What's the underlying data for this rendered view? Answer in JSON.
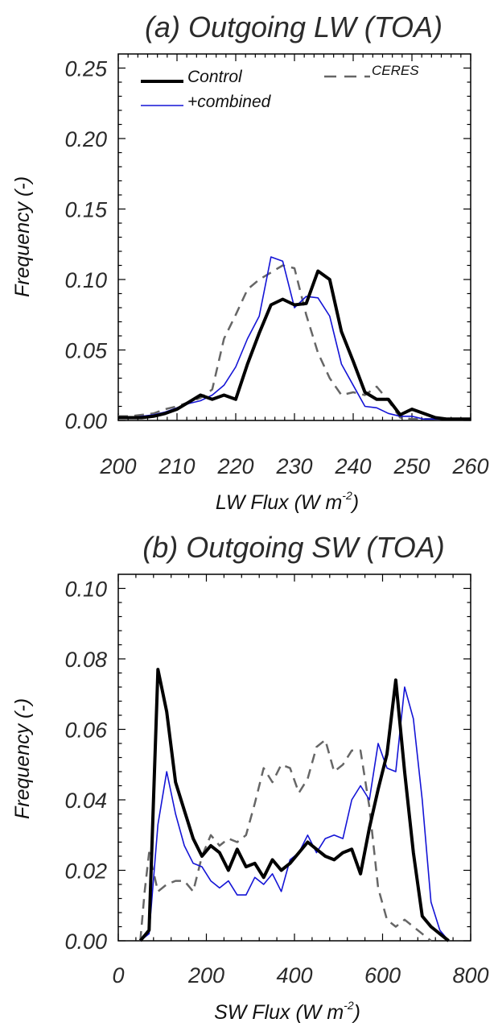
{
  "chart_data": [
    {
      "type": "line",
      "title": "(a)  Outgoing LW (TOA)",
      "xlabel": "LW Flux (W m",
      "xlabel_sup": "-2",
      "xlabel_close": ")",
      "ylabel": "Frequency (-)",
      "xlim": [
        200,
        260
      ],
      "ylim": [
        0,
        0.26
      ],
      "xticks": [
        200,
        210,
        220,
        230,
        240,
        250,
        260
      ],
      "yticks": [
        0.0,
        0.05,
        0.1,
        0.15,
        0.2,
        0.25
      ],
      "ytick_labels": [
        "0.00",
        "0.05",
        "0.10",
        "0.15",
        "0.20",
        "0.25"
      ],
      "grid": false,
      "legend_placement": "top",
      "colors": {
        "control": "#000000",
        "combined": "#1414d6",
        "ceres": "#666666"
      },
      "series": [
        {
          "name": "Control",
          "style": "solid-thick",
          "x": [
            200,
            202,
            204,
            206,
            208,
            210,
            212,
            214,
            216,
            218,
            220,
            222,
            224,
            226,
            228,
            230,
            232,
            234,
            236,
            238,
            240,
            242,
            244,
            246,
            248,
            250,
            252,
            254,
            256,
            258,
            260
          ],
          "values": [
            0.002,
            0.002,
            0.002,
            0.003,
            0.005,
            0.008,
            0.013,
            0.018,
            0.015,
            0.018,
            0.015,
            0.04,
            0.062,
            0.082,
            0.086,
            0.082,
            0.083,
            0.106,
            0.1,
            0.063,
            0.042,
            0.02,
            0.015,
            0.015,
            0.004,
            0.008,
            0.005,
            0.002,
            0.001,
            0.001,
            0.001
          ]
        },
        {
          "name": "+combined",
          "style": "solid-thin",
          "x": [
            200,
            202,
            204,
            206,
            208,
            210,
            212,
            214,
            216,
            218,
            220,
            222,
            224,
            226,
            228,
            230,
            232,
            234,
            236,
            238,
            240,
            242,
            244,
            246,
            248,
            250,
            252,
            254,
            256,
            258,
            260
          ],
          "values": [
            0.002,
            0.002,
            0.003,
            0.004,
            0.006,
            0.009,
            0.012,
            0.014,
            0.018,
            0.025,
            0.038,
            0.058,
            0.074,
            0.116,
            0.113,
            0.08,
            0.088,
            0.087,
            0.074,
            0.04,
            0.025,
            0.01,
            0.009,
            0.005,
            0.003,
            0.003,
            0.001,
            0.001,
            0.001,
            0.001,
            0.001
          ]
        },
        {
          "name": "CERES",
          "style": "dashed",
          "x": [
            200,
            202,
            204,
            206,
            208,
            210,
            212,
            214,
            216,
            218,
            220,
            222,
            224,
            226,
            228,
            230,
            232,
            234,
            236,
            238,
            240,
            242,
            244,
            246,
            248,
            250,
            252,
            254,
            256
          ],
          "values": [
            0.003,
            0.003,
            0.004,
            0.005,
            0.008,
            0.01,
            0.013,
            0.016,
            0.022,
            0.058,
            0.075,
            0.093,
            0.1,
            0.105,
            0.11,
            0.108,
            0.075,
            0.048,
            0.03,
            0.018,
            0.02,
            0.018,
            0.024,
            0.014,
            0.002,
            0.001,
            0.001,
            0.001,
            0.001
          ]
        }
      ]
    },
    {
      "type": "line",
      "title": "(b)  Outgoing SW (TOA)",
      "xlabel": "SW Flux (W m",
      "xlabel_sup": "-2",
      "xlabel_close": ")",
      "ylabel": "Frequency (-)",
      "xlim": [
        0,
        800
      ],
      "ylim": [
        0,
        0.104
      ],
      "xticks": [
        0,
        200,
        400,
        600,
        800
      ],
      "yticks": [
        0.0,
        0.02,
        0.04,
        0.06,
        0.08,
        0.1
      ],
      "ytick_labels": [
        "0.00",
        "0.02",
        "0.04",
        "0.06",
        "0.08",
        "0.10"
      ],
      "grid": false,
      "legend": false,
      "colors": {
        "control": "#000000",
        "combined": "#1414d6",
        "ceres": "#666666"
      },
      "series": [
        {
          "style": "solid-thick",
          "x": [
            50,
            70,
            90,
            110,
            130,
            150,
            170,
            190,
            210,
            230,
            250,
            270,
            290,
            310,
            330,
            350,
            370,
            390,
            410,
            430,
            450,
            470,
            490,
            510,
            530,
            550,
            570,
            590,
            610,
            630,
            650,
            670,
            690,
            710,
            730,
            750
          ],
          "values": [
            0.0,
            0.003,
            0.077,
            0.065,
            0.045,
            0.037,
            0.029,
            0.024,
            0.027,
            0.025,
            0.02,
            0.026,
            0.021,
            0.022,
            0.018,
            0.023,
            0.02,
            0.022,
            0.025,
            0.028,
            0.026,
            0.024,
            0.023,
            0.025,
            0.026,
            0.019,
            0.032,
            0.043,
            0.053,
            0.074,
            0.048,
            0.025,
            0.007,
            0.004,
            0.002,
            0.0
          ]
        },
        {
          "style": "solid-thin",
          "x": [
            50,
            70,
            90,
            110,
            130,
            150,
            170,
            190,
            210,
            230,
            250,
            270,
            290,
            310,
            330,
            350,
            370,
            390,
            410,
            430,
            450,
            470,
            490,
            510,
            530,
            550,
            570,
            590,
            610,
            630,
            650,
            670,
            690,
            710,
            730,
            750
          ],
          "values": [
            0.0,
            0.002,
            0.033,
            0.048,
            0.036,
            0.027,
            0.022,
            0.021,
            0.017,
            0.015,
            0.017,
            0.013,
            0.013,
            0.018,
            0.016,
            0.019,
            0.014,
            0.023,
            0.025,
            0.03,
            0.025,
            0.029,
            0.03,
            0.029,
            0.04,
            0.044,
            0.04,
            0.056,
            0.049,
            0.048,
            0.072,
            0.063,
            0.04,
            0.011,
            0.003,
            0.0
          ]
        },
        {
          "style": "dashed",
          "x": [
            50,
            60,
            70,
            90,
            110,
            130,
            150,
            170,
            190,
            210,
            230,
            250,
            270,
            290,
            310,
            330,
            350,
            370,
            390,
            410,
            430,
            450,
            470,
            490,
            510,
            530,
            550,
            570,
            590,
            610,
            630,
            650,
            670,
            690,
            710
          ],
          "values": [
            0.0,
            0.014,
            0.025,
            0.014,
            0.016,
            0.017,
            0.017,
            0.014,
            0.024,
            0.03,
            0.027,
            0.029,
            0.028,
            0.03,
            0.039,
            0.049,
            0.045,
            0.05,
            0.049,
            0.042,
            0.046,
            0.055,
            0.057,
            0.048,
            0.05,
            0.054,
            0.054,
            0.038,
            0.015,
            0.006,
            0.004,
            0.006,
            0.004,
            0.002,
            0.0
          ]
        }
      ]
    }
  ]
}
